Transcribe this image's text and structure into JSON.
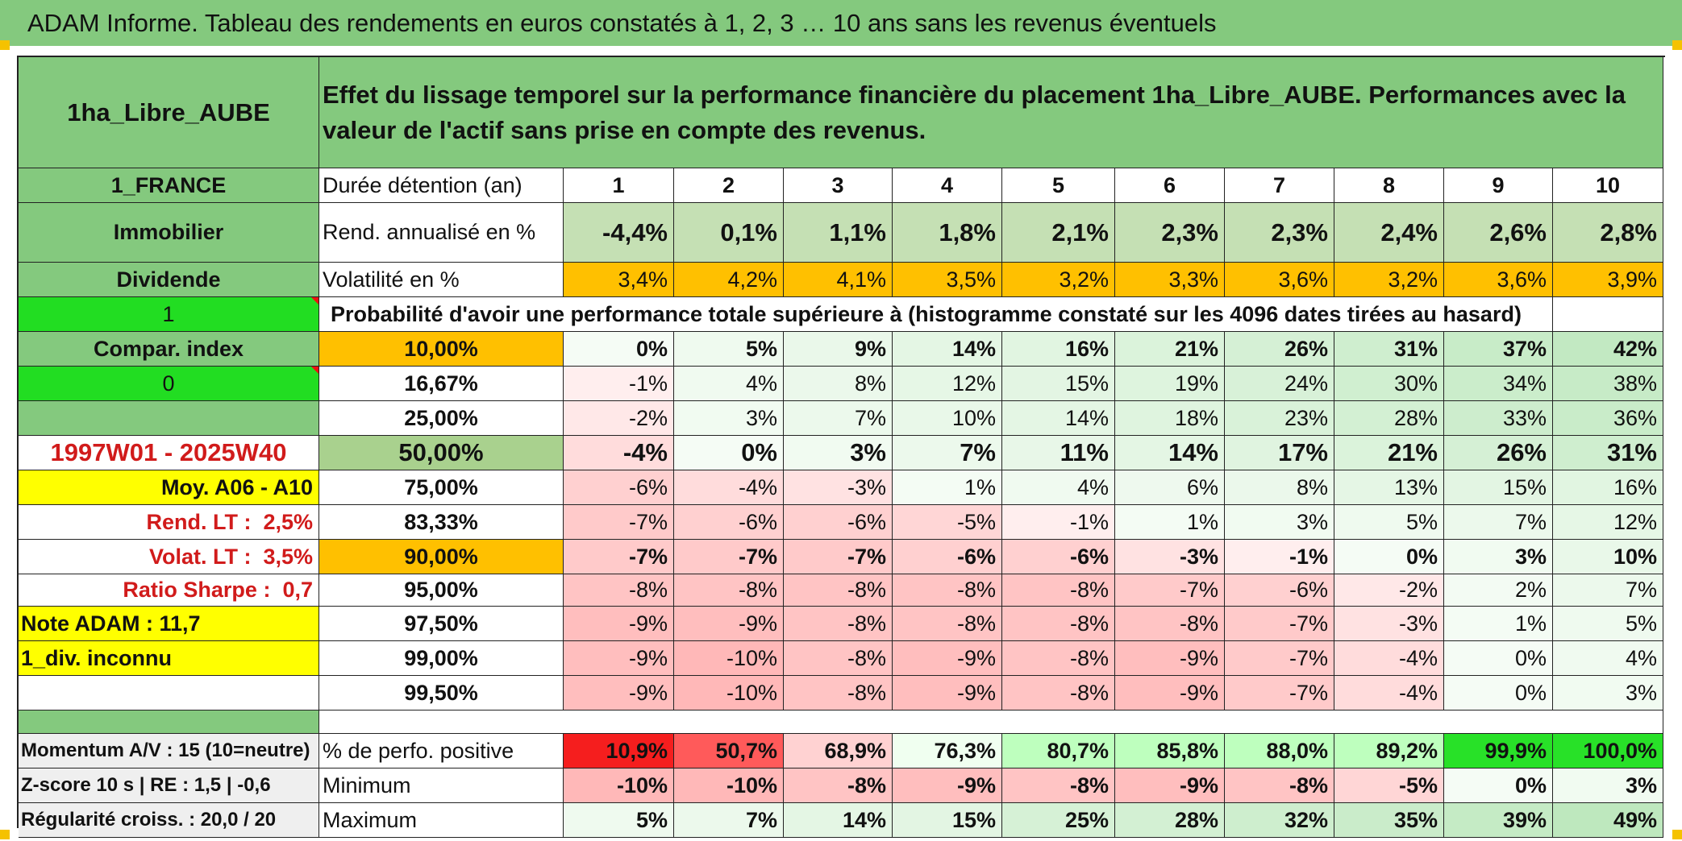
{
  "title": "ADAM Informe. Tableau des rendements en euros constatés à 1, 2, 3 … 10 ans sans les revenus éventuels",
  "asset_name": "1ha_Libre_AUBE",
  "header_description": "Effet du lissage temporel sur la performance financière du placement 1ha_Libre_AUBE. Performances avec la valeur de l'actif sans prise en compte des revenus.",
  "side": {
    "country": "1_FRANCE",
    "category": "Immobilier",
    "dividend": "Dividende",
    "flag1": "1",
    "compar_index": "Compar. index",
    "flag0": "0",
    "period": "1997W01 - 2025W40",
    "moy": "Moy. A06 - A10",
    "rend_lt_label": "Rend. LT :",
    "rend_lt_value": "2,5%",
    "volat_lt_label": "Volat. LT :",
    "volat_lt_value": "3,5%",
    "sharpe_label": "Ratio Sharpe :",
    "sharpe_value": "0,7",
    "note": "Note ADAM : 11,7",
    "div_status": "1_div. inconnu",
    "momentum": "Momentum A/V : 15 (10=neutre)",
    "zscore": "Z-score 10 s | RE : 1,5 | -0,6",
    "regularite": "Régularité croiss. : 20,0 / 20"
  },
  "labels": {
    "duree": "Durée détention (an)",
    "rend": "Rend. annualisé en %",
    "vol": "Volatilité en %",
    "proba": "Probabilité d'avoir une performance totale supérieure à (histogramme constaté sur les 4096 dates tirées au hasard)",
    "positive": "% de perfo. positive",
    "minimum": "Minimum",
    "maximum": "Maximum"
  },
  "years": [
    "1",
    "2",
    "3",
    "4",
    "5",
    "6",
    "7",
    "8",
    "9",
    "10"
  ],
  "rend": [
    "-4,4%",
    "0,1%",
    "1,1%",
    "1,8%",
    "2,1%",
    "2,3%",
    "2,3%",
    "2,4%",
    "2,6%",
    "2,8%"
  ],
  "vol": [
    "3,4%",
    "4,2%",
    "4,1%",
    "3,5%",
    "3,2%",
    "3,3%",
    "3,6%",
    "3,2%",
    "3,6%",
    "3,9%"
  ],
  "quantiles": [
    {
      "q": "10,00%",
      "values": [
        "0%",
        "5%",
        "9%",
        "14%",
        "16%",
        "21%",
        "26%",
        "31%",
        "37%",
        "42%"
      ]
    },
    {
      "q": "16,67%",
      "values": [
        "-1%",
        "4%",
        "8%",
        "12%",
        "15%",
        "19%",
        "24%",
        "30%",
        "34%",
        "38%"
      ]
    },
    {
      "q": "25,00%",
      "values": [
        "-2%",
        "3%",
        "7%",
        "10%",
        "14%",
        "18%",
        "23%",
        "28%",
        "33%",
        "36%"
      ]
    },
    {
      "q": "50,00%",
      "values": [
        "-4%",
        "0%",
        "3%",
        "7%",
        "11%",
        "14%",
        "17%",
        "21%",
        "26%",
        "31%"
      ]
    },
    {
      "q": "75,00%",
      "values": [
        "-6%",
        "-4%",
        "-3%",
        "1%",
        "4%",
        "6%",
        "8%",
        "13%",
        "15%",
        "16%"
      ]
    },
    {
      "q": "83,33%",
      "values": [
        "-7%",
        "-6%",
        "-6%",
        "-5%",
        "-1%",
        "1%",
        "3%",
        "5%",
        "7%",
        "12%"
      ]
    },
    {
      "q": "90,00%",
      "values": [
        "-7%",
        "-7%",
        "-7%",
        "-6%",
        "-6%",
        "-3%",
        "-1%",
        "0%",
        "3%",
        "10%"
      ]
    },
    {
      "q": "95,00%",
      "values": [
        "-8%",
        "-8%",
        "-8%",
        "-8%",
        "-8%",
        "-7%",
        "-6%",
        "-2%",
        "2%",
        "7%"
      ]
    },
    {
      "q": "97,50%",
      "values": [
        "-9%",
        "-9%",
        "-8%",
        "-8%",
        "-8%",
        "-8%",
        "-7%",
        "-3%",
        "1%",
        "5%"
      ]
    },
    {
      "q": "99,00%",
      "values": [
        "-9%",
        "-10%",
        "-8%",
        "-9%",
        "-8%",
        "-9%",
        "-7%",
        "-4%",
        "0%",
        "4%"
      ]
    },
    {
      "q": "99,50%",
      "values": [
        "-9%",
        "-10%",
        "-8%",
        "-9%",
        "-8%",
        "-9%",
        "-7%",
        "-4%",
        "0%",
        "3%"
      ]
    }
  ],
  "positive": [
    "10,9%",
    "50,7%",
    "68,9%",
    "76,3%",
    "80,7%",
    "85,8%",
    "88,0%",
    "89,2%",
    "99,9%",
    "100,0%"
  ],
  "minimum": [
    "-10%",
    "-10%",
    "-8%",
    "-9%",
    "-8%",
    "-9%",
    "-8%",
    "-5%",
    "0%",
    "3%"
  ],
  "maximum": [
    "5%",
    "7%",
    "14%",
    "15%",
    "25%",
    "28%",
    "32%",
    "35%",
    "39%",
    "49%"
  ],
  "colors": {
    "green_header": "#84c97e",
    "bright_green": "#22dd22",
    "yellow": "#ffff00",
    "orange": "#ffc000",
    "red_text": "#d11b1b"
  }
}
